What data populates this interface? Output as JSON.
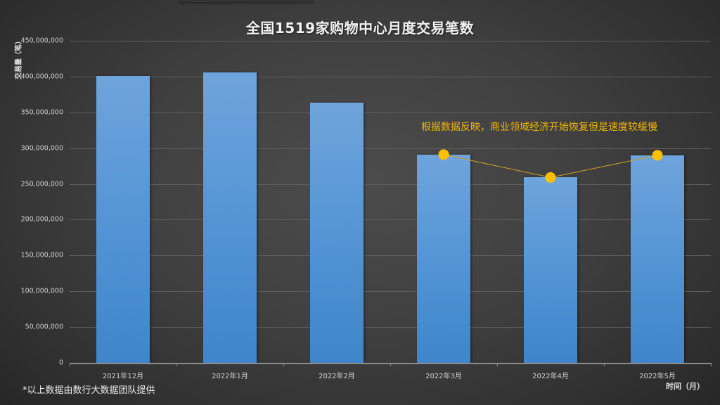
{
  "chart_data": {
    "type": "bar",
    "title": "全国1519家购物中心月度交易笔数",
    "xlabel": "时间（月）",
    "ylabel": "交易量（笔）",
    "categories": [
      "2021年12月",
      "2022年1月",
      "2022年2月",
      "2022年3月",
      "2022年4月",
      "2022年5月"
    ],
    "values": [
      401000000,
      406000000,
      364000000,
      291000000,
      259000000,
      290000000
    ],
    "ylim": [
      0,
      450000000
    ],
    "yticks": [
      "0",
      "50,000,000",
      "100,000,000",
      "150,000,000",
      "200,000,000",
      "250,000,000",
      "300,000,000",
      "350,000,000",
      "400,000,000",
      "450,000,000"
    ],
    "grid": true,
    "legend": null,
    "overlay_line": {
      "categories": [
        "2022年3月",
        "2022年4月",
        "2022年5月"
      ],
      "values": [
        291000000,
        259000000,
        290000000
      ],
      "color": "#FFC000"
    },
    "annotation": "根据数据反映，商业领域经济开始恢复但是速度较缓慢"
  },
  "footer": {
    "note": "*以上数据由数行大数据团队提供"
  },
  "colors": {
    "bar": "#5B9BD5",
    "marker": "#FFC000",
    "annotation": "#F2B705",
    "background": "#404040"
  }
}
